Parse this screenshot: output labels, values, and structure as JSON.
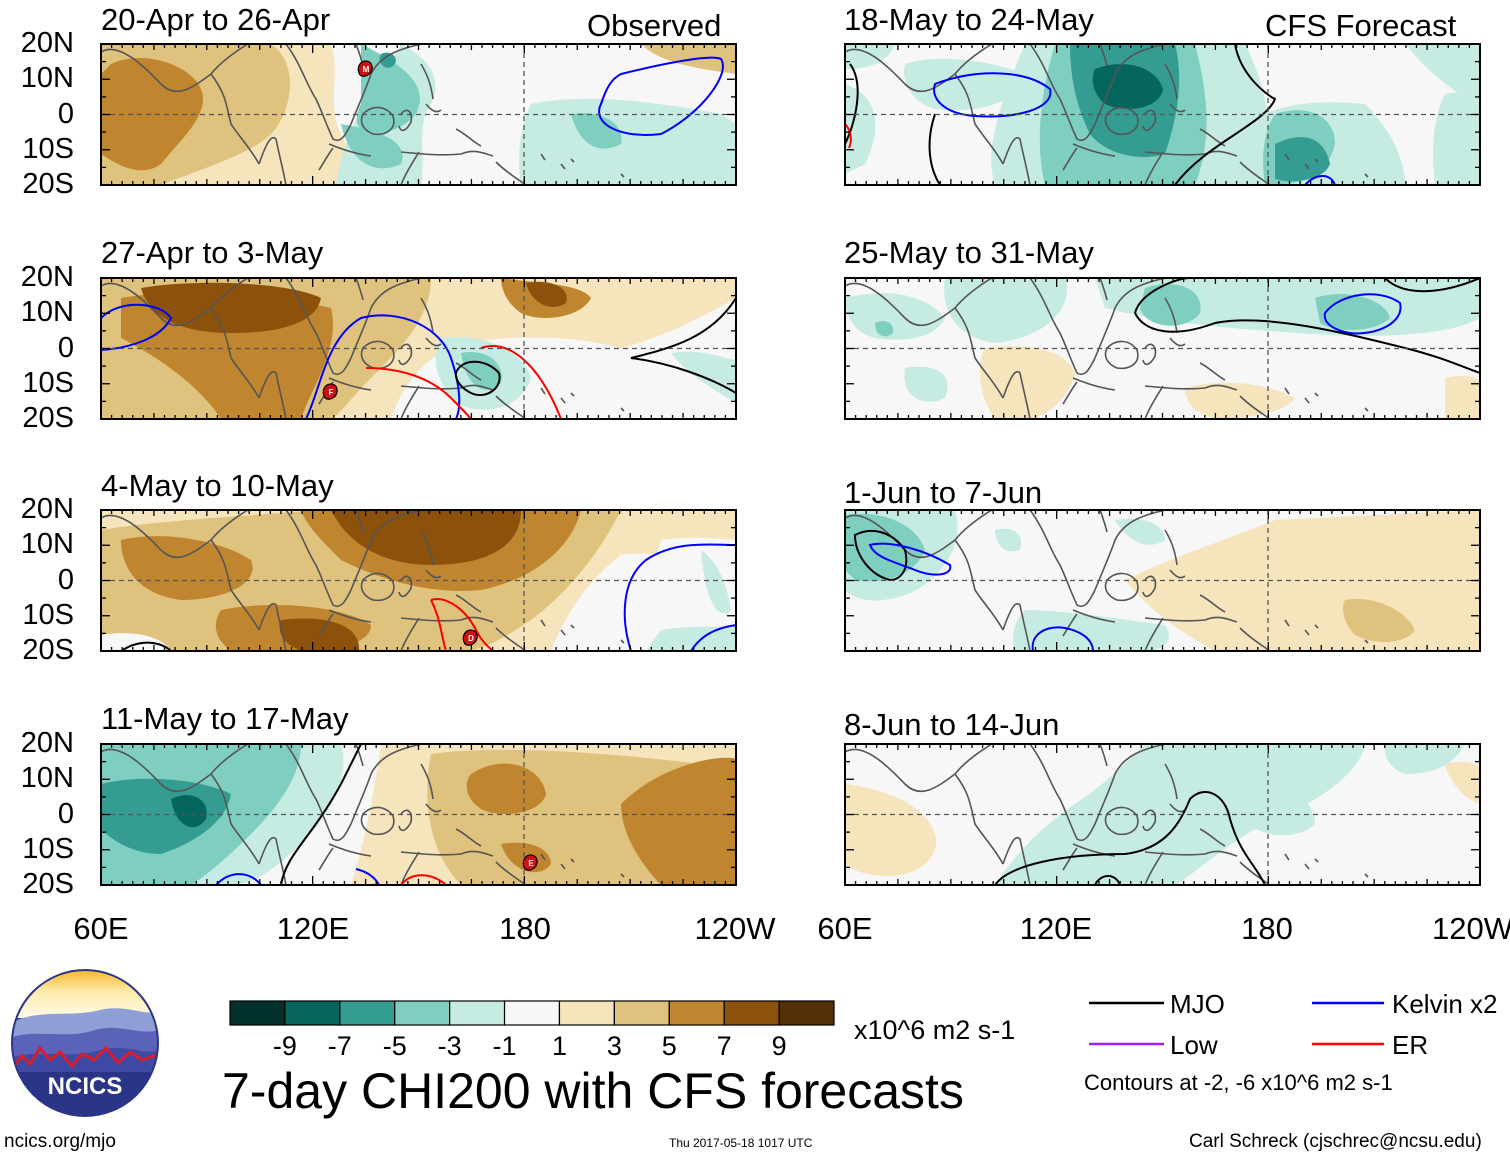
{
  "column_labels": {
    "observed": "Observed",
    "forecast": "CFS Forecast"
  },
  "lat_labels": [
    "20N",
    "10N",
    "0",
    "10S",
    "20S"
  ],
  "lon_labels": [
    "60E",
    "120E",
    "180",
    "120W"
  ],
  "panels": [
    {
      "title": "20-Apr to 26-Apr",
      "kind": "observed"
    },
    {
      "title": "27-Apr to 3-May",
      "kind": "observed"
    },
    {
      "title": "4-May to 10-May",
      "kind": "observed"
    },
    {
      "title": "11-May to 17-May",
      "kind": "observed"
    },
    {
      "title": "18-May to 24-May",
      "kind": "forecast"
    },
    {
      "title": "25-May to 31-May",
      "kind": "forecast"
    },
    {
      "title": "1-Jun to 7-Jun",
      "kind": "forecast"
    },
    {
      "title": "8-Jun to 14-Jun",
      "kind": "forecast"
    }
  ],
  "storm_markers": [
    "M",
    "F",
    "D",
    "E"
  ],
  "colorbar": {
    "ticks": [
      "-9",
      "-7",
      "-5",
      "-3",
      "-1",
      "1",
      "3",
      "5",
      "7",
      "9"
    ],
    "colors": [
      "#02302a",
      "#05665d",
      "#359c92",
      "#7fcfc0",
      "#c6ebe3",
      "#f7f7f7",
      "#f5e4bc",
      "#dfc27e",
      "#c0862f",
      "#8c510b",
      "#553006"
    ],
    "units": "x10^6 m2 s-1"
  },
  "legend": {
    "items": [
      {
        "label": "MJO",
        "color": "#000000"
      },
      {
        "label": "Kelvin x2",
        "color": "#0000ff"
      },
      {
        "label": "Low",
        "color": "#a020f0"
      },
      {
        "label": "ER",
        "color": "#ff0000"
      }
    ],
    "note": "Contours at -2, -6 x10^6 m2 s-1"
  },
  "main_title": "7-day CHI200 with CFS forecasts",
  "logo_text": "NCICS",
  "footer": {
    "left": "ncics.org/mjo",
    "center": "Thu 2017-05-18 1017 UTC",
    "right": "Carl Schreck (cjschrec@ncsu.edu)"
  }
}
